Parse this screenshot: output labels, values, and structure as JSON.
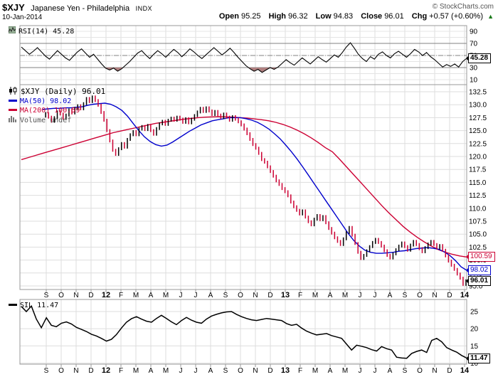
{
  "header": {
    "symbol": "$XJY",
    "name": "Japanese Yen - Philadelphia",
    "exchange": "INDX",
    "credit": "© StockCharts.com",
    "date": "10-Jan-2014",
    "quote": {
      "open_label": "Open",
      "open": "95.25",
      "high_label": "High",
      "high": "96.32",
      "low_label": "Low",
      "low": "94.83",
      "close_label": "Close",
      "close": "96.01",
      "chg_label": "Chg",
      "chg": "+0.57 (+0.60%)",
      "up_symbol": "▲"
    }
  },
  "legends": {
    "rsi": "RSI(14) 45.28",
    "symbol": "$XJY (Daily) 96.01",
    "ma50": "MA(50) 98.02",
    "ma200": "MA(200) 100.59",
    "volume": "Volume undef",
    "sil": "SIL 11.47"
  },
  "tags": {
    "rsi": "45.28",
    "ma200": "100.59",
    "ma50": "98.02",
    "close": "96.01",
    "sil": "11.47"
  },
  "colors": {
    "ma50": "#0000cc",
    "ma200": "#cc0033",
    "candle_up": "#000000",
    "candle_down": "#cc0033",
    "rsi_line": "#000000",
    "rsi_fill": "#b08080",
    "ref_line": "#808080",
    "sil_line": "#000000",
    "grid": "#dddddd",
    "grid_faint": "#e4e4e4",
    "border": "#999999",
    "up_triangle": "#1a7a1a"
  },
  "xaxis": {
    "labels": [
      "S",
      "O",
      "N",
      "D",
      "12",
      "F",
      "M",
      "A",
      "M",
      "J",
      "J",
      "A",
      "S",
      "O",
      "N",
      "D",
      "13",
      "F",
      "M",
      "A",
      "M",
      "J",
      "J",
      "A",
      "S",
      "O",
      "N",
      "D",
      "14"
    ],
    "year_label_indices": [
      4,
      16,
      28
    ]
  },
  "chart_data": [
    {
      "type": "line",
      "panel": "rsi",
      "title": "RSI(14)",
      "last": 45.28,
      "ylim": [
        0,
        100
      ],
      "y_ticks": [
        90,
        70,
        50,
        30,
        10
      ],
      "ref_lines": {
        "overbought": 70,
        "midline": 50,
        "oversold": 30
      },
      "oversold_fill": true,
      "x_range": [
        "Sep-2011",
        "Jan-2014"
      ],
      "values": [
        64,
        58,
        52,
        57,
        63,
        56,
        49,
        44,
        51,
        58,
        52,
        46,
        42,
        49,
        56,
        61,
        54,
        47,
        52,
        44,
        36,
        29,
        26,
        29,
        24,
        28,
        34,
        40,
        47,
        54,
        58,
        51,
        45,
        52,
        58,
        53,
        47,
        54,
        60,
        55,
        48,
        54,
        61,
        56,
        50,
        45,
        51,
        57,
        63,
        57,
        51,
        56,
        62,
        55,
        47,
        40,
        33,
        28,
        24,
        27,
        22,
        26,
        30,
        27,
        31,
        37,
        43,
        38,
        34,
        40,
        46,
        41,
        36,
        42,
        48,
        43,
        39,
        45,
        51,
        47,
        55,
        64,
        71,
        62,
        52,
        45,
        40,
        48,
        44,
        52,
        56,
        50,
        46,
        53,
        57,
        52,
        47,
        53,
        60,
        56,
        50,
        55,
        48,
        43,
        37,
        31,
        35,
        32,
        36,
        31,
        40,
        45.28
      ]
    },
    {
      "type": "candlestick",
      "panel": "main",
      "title": "$XJY (Daily)",
      "last_close": 96.01,
      "ohlc_today": {
        "open": 95.25,
        "high": 96.32,
        "low": 94.83,
        "close": 96.01
      },
      "ylim": [
        95.0,
        132.5
      ],
      "y_tick_step": 2.5,
      "volume": "undef",
      "close": [
        127.8,
        128.3,
        127.6,
        126.8,
        127.5,
        128.6,
        128.2,
        127.4,
        128.0,
        129.0,
        128.4,
        129.3,
        129.8,
        129.2,
        130.2,
        131.2,
        130.6,
        131.5,
        130.8,
        129.9,
        128.5,
        127.0,
        125.0,
        123.0,
        121.2,
        120.4,
        121.5,
        122.5,
        121.8,
        123.3,
        124.2,
        124.8,
        124.2,
        125.3,
        125.8,
        125.2,
        126.0,
        125.0,
        124.3,
        125.4,
        126.3,
        126.8,
        126.2,
        127.0,
        127.4,
        127.0,
        127.6,
        127.2,
        126.6,
        127.3,
        126.5,
        127.2,
        127.9,
        128.6,
        129.3,
        128.7,
        129.4,
        128.8,
        128.1,
        128.7,
        128.0,
        127.5,
        128.2,
        127.6,
        127.0,
        127.7,
        127.2,
        126.7,
        126.1,
        125.3,
        124.4,
        123.3,
        122.3,
        121.6,
        120.6,
        119.4,
        118.9,
        118.0,
        117.1,
        116.2,
        115.3,
        114.6,
        113.8,
        113.2,
        112.4,
        111.2,
        110.3,
        109.6,
        108.9,
        109.5,
        108.3,
        107.4,
        106.8,
        107.9,
        108.6,
        107.8,
        108.4,
        107.2,
        106.1,
        105.2,
        104.3,
        103.6,
        103.0,
        104.1,
        105.3,
        106.3,
        104.8,
        103.2,
        101.5,
        100.3,
        100.9,
        101.8,
        102.6,
        103.4,
        104.0,
        103.4,
        102.7,
        101.8,
        100.9,
        100.4,
        101.2,
        102.0,
        102.7,
        103.3,
        102.6,
        101.9,
        102.9,
        103.6,
        103.0,
        102.2,
        101.6,
        102.4,
        103.1,
        103.6,
        103.0,
        102.3,
        102.8,
        101.9,
        100.8,
        99.8,
        99.0,
        98.2,
        97.3,
        96.5,
        95.3,
        96.0
      ],
      "series": [
        {
          "name": "MA(50)",
          "last": 98.02,
          "values": [
            129.1,
            129.2,
            129.3,
            129.3,
            129.4,
            129.4,
            129.5,
            129.6,
            129.9,
            130.1,
            130.2,
            130.3,
            130.1,
            129.6,
            128.9,
            127.8,
            126.4,
            125.0,
            123.8,
            122.9,
            122.3,
            122.0,
            122.2,
            122.8,
            123.5,
            124.2,
            124.9,
            125.5,
            126.1,
            126.5,
            126.9,
            127.1,
            127.3,
            127.5,
            127.5,
            127.5,
            127.3,
            127.0,
            126.6,
            126.0,
            125.3,
            124.4,
            123.4,
            122.2,
            120.9,
            119.5,
            118.0,
            116.4,
            114.8,
            113.2,
            111.6,
            110.0,
            108.4,
            106.8,
            105.2,
            103.8,
            102.7,
            101.9,
            101.5,
            101.3,
            101.3,
            101.4,
            101.5,
            101.7,
            101.8,
            102.0,
            102.2,
            102.3,
            102.4,
            102.3,
            102.1,
            101.6,
            100.9,
            99.9,
            98.7,
            98.02
          ]
        },
        {
          "name": "MA(200)",
          "last": 100.59,
          "values": [
            119.4,
            119.8,
            120.2,
            120.6,
            121.0,
            121.4,
            121.8,
            122.2,
            122.6,
            123.0,
            123.4,
            123.8,
            124.2,
            124.6,
            124.9,
            125.2,
            125.5,
            125.8,
            126.1,
            126.4,
            126.6,
            126.8,
            127.0,
            127.2,
            127.35,
            127.5,
            127.6,
            127.65,
            127.7,
            127.65,
            127.6,
            127.5,
            127.4,
            127.25,
            127.1,
            126.9,
            126.6,
            126.2,
            125.7,
            125.1,
            124.4,
            123.6,
            122.7,
            121.7,
            120.9,
            119.5,
            118.0,
            116.5,
            115.0,
            113.5,
            112.0,
            110.5,
            109.1,
            107.8,
            106.5,
            105.4,
            104.4,
            103.5,
            102.7,
            102.0,
            101.5,
            101.1,
            100.8,
            100.59
          ]
        }
      ]
    },
    {
      "type": "line",
      "panel": "sil",
      "title": "SIL",
      "last": 11.47,
      "ylim": [
        10,
        29
      ],
      "y_ticks": [
        25,
        20,
        15,
        10
      ],
      "values": [
        26.5,
        25.0,
        26.6,
        22.8,
        20.3,
        23.2,
        21.0,
        20.6,
        21.6,
        22.0,
        21.4,
        20.4,
        19.8,
        19.2,
        18.4,
        17.9,
        17.2,
        16.4,
        16.9,
        18.3,
        20.2,
        21.9,
        22.9,
        23.5,
        22.8,
        22.2,
        21.9,
        23.0,
        23.9,
        23.0,
        22.0,
        21.2,
        22.4,
        23.3,
        22.5,
        21.9,
        21.6,
        22.8,
        23.7,
        24.2,
        24.6,
        24.9,
        25.0,
        24.2,
        23.5,
        23.0,
        22.6,
        22.4,
        22.7,
        23.0,
        22.8,
        22.6,
        22.4,
        21.5,
        21.0,
        21.3,
        20.2,
        19.3,
        18.7,
        18.2,
        18.4,
        18.6,
        18.0,
        17.6,
        17.2,
        15.5,
        13.8,
        15.2,
        14.9,
        14.5,
        13.9,
        13.5,
        14.8,
        14.2,
        13.8,
        11.7,
        11.5,
        11.4,
        12.8,
        13.4,
        13.8,
        13.1,
        16.6,
        17.2,
        16.2,
        14.5,
        13.8,
        13.2,
        12.2,
        11.47
      ]
    }
  ]
}
